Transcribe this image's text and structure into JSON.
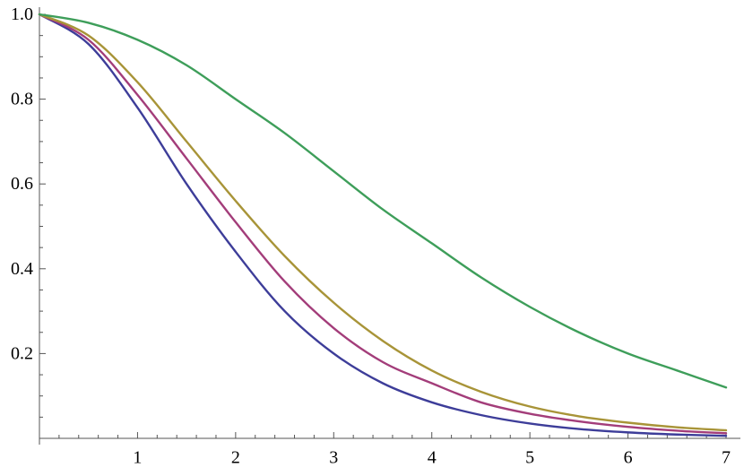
{
  "chart_data": {
    "type": "line",
    "title": "",
    "xlabel": "",
    "ylabel": "",
    "xlim": [
      0,
      7
    ],
    "ylim": [
      0,
      1.0
    ],
    "grid": false,
    "legend": "none",
    "x_ticks": [
      1,
      2,
      3,
      4,
      5,
      6,
      7
    ],
    "x_tick_labels": [
      "1",
      "2",
      "3",
      "4",
      "5",
      "6",
      "7"
    ],
    "y_ticks": [
      0.2,
      0.4,
      0.6,
      0.8,
      1.0
    ],
    "y_tick_labels": [
      "0.2",
      "0.4",
      "0.6",
      "0.8",
      "1.0"
    ],
    "x": [
      0,
      0.5,
      1,
      1.5,
      2,
      2.5,
      3,
      3.5,
      4,
      4.5,
      5,
      5.5,
      6,
      6.5,
      7
    ],
    "series": [
      {
        "color": "#3d3d99",
        "values": [
          1.0,
          0.93,
          0.78,
          0.6,
          0.44,
          0.3,
          0.2,
          0.13,
          0.085,
          0.055,
          0.035,
          0.022,
          0.014,
          0.009,
          0.006
        ]
      },
      {
        "color": "#a33d7a",
        "values": [
          1.0,
          0.94,
          0.81,
          0.66,
          0.51,
          0.37,
          0.26,
          0.18,
          0.13,
          0.085,
          0.058,
          0.04,
          0.027,
          0.018,
          0.012
        ]
      },
      {
        "color": "#a89438",
        "values": [
          1.0,
          0.95,
          0.84,
          0.7,
          0.56,
          0.43,
          0.32,
          0.23,
          0.16,
          0.11,
          0.075,
          0.052,
          0.037,
          0.026,
          0.019
        ]
      },
      {
        "color": "#3e9e5a",
        "values": [
          1.0,
          0.98,
          0.94,
          0.88,
          0.8,
          0.72,
          0.63,
          0.54,
          0.46,
          0.38,
          0.31,
          0.25,
          0.2,
          0.16,
          0.12
        ]
      }
    ]
  }
}
